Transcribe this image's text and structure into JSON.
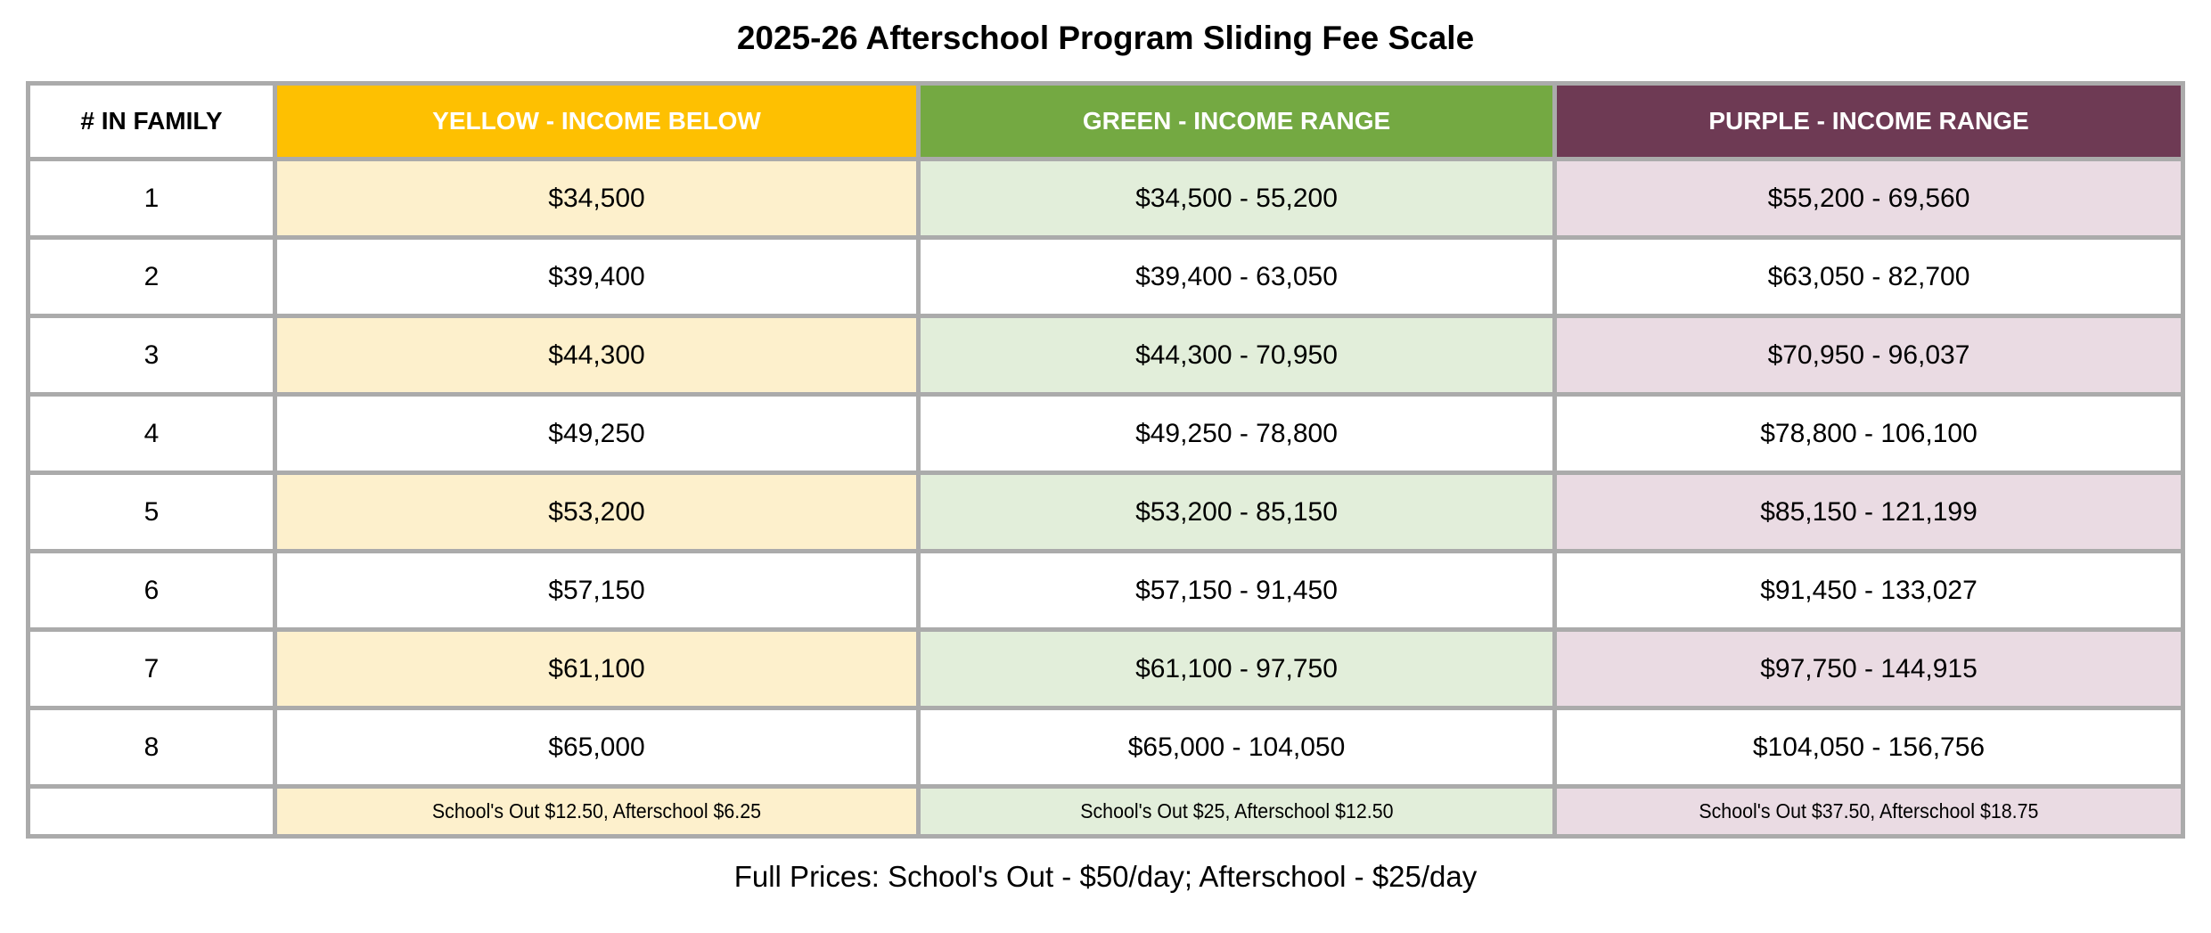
{
  "title": "2025-26 Afterschool Program Sliding Fee Scale",
  "colors": {
    "yellow_header": "#FEC001",
    "yellow_tint": "#FDF0CC",
    "green_header": "#74A942",
    "green_tint": "#E2EEDA",
    "purple_header": "#6E3A54",
    "purple_tint": "#EADBE3",
    "border": "#ABABAB",
    "text": "#000000"
  },
  "table": {
    "headers": {
      "family": "# IN FAMILY",
      "yellow": "YELLOW - INCOME BELOW",
      "green": "GREEN - INCOME RANGE",
      "purple": "PURPLE - INCOME RANGE"
    },
    "rows": [
      {
        "family": "1",
        "yellow": "$34,500",
        "green": "$34,500 - 55,200",
        "purple": "$55,200 - 69,560"
      },
      {
        "family": "2",
        "yellow": "$39,400",
        "green": "$39,400 - 63,050",
        "purple": "$63,050 - 82,700"
      },
      {
        "family": "3",
        "yellow": "$44,300",
        "green": "$44,300 - 70,950",
        "purple": "$70,950 - 96,037"
      },
      {
        "family": "4",
        "yellow": "$49,250",
        "green": "$49,250 - 78,800",
        "purple": "$78,800 - 106,100"
      },
      {
        "family": "5",
        "yellow": "$53,200",
        "green": "$53,200 - 85,150",
        "purple": "$85,150 - 121,199"
      },
      {
        "family": "6",
        "yellow": "$57,150",
        "green": "$57,150 - 91,450",
        "purple": "$91,450 - 133,027"
      },
      {
        "family": "7",
        "yellow": "$61,100",
        "green": "$61,100 - 97,750",
        "purple": "$97,750 - 144,915"
      },
      {
        "family": "8",
        "yellow": "$65,000",
        "green": "$65,000 - 104,050",
        "purple": "$104,050 - 156,756"
      }
    ],
    "pricing_row": {
      "yellow": "School's Out $12.50, Afterschool $6.25",
      "green": "School's Out $25, Afterschool $12.50",
      "purple": "School's Out $37.50, Afterschool $18.75"
    }
  },
  "footer_note": "Full Prices: School's Out - $50/day; Afterschool - $25/day"
}
